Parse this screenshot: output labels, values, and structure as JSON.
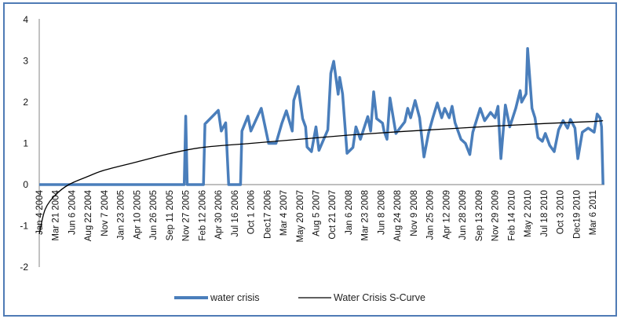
{
  "chart_data": {
    "type": "line",
    "title": "",
    "xlabel": "",
    "ylabel": "",
    "ylim": [
      -2,
      4
    ],
    "yticks": [
      "4",
      "3",
      "2",
      "1",
      "0",
      "-1",
      "-2"
    ],
    "grid": false,
    "legend_position": "bottom",
    "x_tick_labels": [
      "Jan 4 2004",
      "Mar 21 2004",
      "Jun 6 2004",
      "Aug 22 2004",
      "Nov 7 2004",
      "Jan 23 2005",
      "Apr 10 2005",
      "Jun 26 2005",
      "Sep 11 2005",
      "Nov 27 2005",
      "Feb 12 2006",
      "Apr 30 2006",
      "Jul 16 2006",
      "Oct 1 2006",
      "Dec17 2006",
      "Mar 4 2007",
      "May 20 2007",
      "Aug 5 2007",
      "Oct 21 2007",
      "Jan 6 2008",
      "Mar 23 2008",
      "Jun 8 2008",
      "Aug 24 2008",
      "Nov 9 2008",
      "Jan 25 2009",
      "Apr 12 2009",
      "Jun 28 2009",
      "Sep 13 2009",
      "Nov 29 2009",
      "Feb 14 2010",
      "May 2 2010",
      "Jul 18 2010",
      "Oct 3 2010",
      "Dec19 2010",
      "Mar 6 2011"
    ],
    "series": [
      {
        "name": "water crisis",
        "color": "#4a7ebb",
        "points": [
          [
            "2004-01-04",
            0
          ],
          [
            "2005-11-20",
            0
          ],
          [
            "2005-11-27",
            1.66
          ],
          [
            "2005-12-04",
            0
          ],
          [
            "2006-02-19",
            0
          ],
          [
            "2006-02-26",
            1.47
          ],
          [
            "2006-04-30",
            1.8
          ],
          [
            "2006-05-14",
            1.3
          ],
          [
            "2006-06-04",
            1.5
          ],
          [
            "2006-06-18",
            0
          ],
          [
            "2006-08-13",
            0
          ],
          [
            "2006-08-20",
            1.3
          ],
          [
            "2006-09-17",
            1.66
          ],
          [
            "2006-10-01",
            1.3
          ],
          [
            "2006-11-19",
            1.85
          ],
          [
            "2006-12-24",
            1.0
          ],
          [
            "2007-01-28",
            1.0
          ],
          [
            "2007-02-25",
            1.49
          ],
          [
            "2007-03-18",
            1.79
          ],
          [
            "2007-04-15",
            1.3
          ],
          [
            "2007-04-22",
            2.04
          ],
          [
            "2007-05-13",
            2.38
          ],
          [
            "2007-06-03",
            1.6
          ],
          [
            "2007-06-17",
            1.4
          ],
          [
            "2007-06-24",
            0.91
          ],
          [
            "2007-07-15",
            0.8
          ],
          [
            "2007-08-05",
            1.4
          ],
          [
            "2007-08-19",
            0.83
          ],
          [
            "2007-09-30",
            1.33
          ],
          [
            "2007-10-14",
            2.7
          ],
          [
            "2007-10-28",
            2.99
          ],
          [
            "2007-11-18",
            2.19
          ],
          [
            "2007-11-25",
            2.6
          ],
          [
            "2007-12-09",
            2.2
          ],
          [
            "2007-12-30",
            0.76
          ],
          [
            "2008-01-27",
            0.9
          ],
          [
            "2008-02-10",
            1.4
          ],
          [
            "2008-03-02",
            1.1
          ],
          [
            "2008-04-06",
            1.65
          ],
          [
            "2008-04-20",
            1.3
          ],
          [
            "2008-05-04",
            2.25
          ],
          [
            "2008-05-18",
            1.6
          ],
          [
            "2008-06-15",
            1.49
          ],
          [
            "2008-06-22",
            1.3
          ],
          [
            "2008-07-06",
            1.1
          ],
          [
            "2008-07-20",
            2.1
          ],
          [
            "2008-08-17",
            1.24
          ],
          [
            "2008-09-28",
            1.52
          ],
          [
            "2008-10-12",
            1.85
          ],
          [
            "2008-10-26",
            1.62
          ],
          [
            "2008-11-16",
            2.04
          ],
          [
            "2008-12-07",
            1.62
          ],
          [
            "2008-12-28",
            0.67
          ],
          [
            "2009-01-18",
            1.24
          ],
          [
            "2009-02-08",
            1.62
          ],
          [
            "2009-03-01",
            1.98
          ],
          [
            "2009-03-22",
            1.62
          ],
          [
            "2009-04-05",
            1.85
          ],
          [
            "2009-04-26",
            1.62
          ],
          [
            "2009-05-10",
            1.9
          ],
          [
            "2009-05-24",
            1.5
          ],
          [
            "2009-06-21",
            1.1
          ],
          [
            "2009-07-12",
            1.0
          ],
          [
            "2009-08-02",
            0.73
          ],
          [
            "2009-08-16",
            1.27
          ],
          [
            "2009-09-20",
            1.85
          ],
          [
            "2009-10-11",
            1.55
          ],
          [
            "2009-11-08",
            1.75
          ],
          [
            "2009-11-29",
            1.62
          ],
          [
            "2009-12-13",
            1.9
          ],
          [
            "2009-12-27",
            0.63
          ],
          [
            "2010-01-17",
            1.93
          ],
          [
            "2010-02-07",
            1.4
          ],
          [
            "2010-03-07",
            1.85
          ],
          [
            "2010-03-28",
            2.28
          ],
          [
            "2010-04-04",
            2.0
          ],
          [
            "2010-04-25",
            2.2
          ],
          [
            "2010-05-02",
            3.3
          ],
          [
            "2010-05-23",
            1.85
          ],
          [
            "2010-06-06",
            1.62
          ],
          [
            "2010-06-20",
            1.14
          ],
          [
            "2010-07-11",
            1.05
          ],
          [
            "2010-07-25",
            1.24
          ],
          [
            "2010-08-15",
            0.95
          ],
          [
            "2010-09-05",
            0.8
          ],
          [
            "2010-09-26",
            1.33
          ],
          [
            "2010-10-17",
            1.55
          ],
          [
            "2010-11-07",
            1.37
          ],
          [
            "2010-11-21",
            1.58
          ],
          [
            "2010-12-12",
            1.37
          ],
          [
            "2010-12-26",
            0.63
          ],
          [
            "2011-01-16",
            1.27
          ],
          [
            "2011-02-13",
            1.37
          ],
          [
            "2011-03-13",
            1.27
          ],
          [
            "2011-03-27",
            1.71
          ],
          [
            "2011-04-10",
            1.62
          ],
          [
            "2011-04-17",
            1.4
          ],
          [
            "2011-04-24",
            0
          ]
        ]
      },
      {
        "name": "Water Crisis S-Curve",
        "color": "#000000",
        "points": [
          [
            "2004-01-04",
            -1.2
          ],
          [
            "2004-02-01",
            -0.6
          ],
          [
            "2004-03-21",
            -0.25
          ],
          [
            "2004-05-23",
            0
          ],
          [
            "2004-08-22",
            0.2
          ],
          [
            "2004-11-07",
            0.35
          ],
          [
            "2005-04-10",
            0.55
          ],
          [
            "2005-09-11",
            0.75
          ],
          [
            "2006-02-12",
            0.9
          ],
          [
            "2006-10-01",
            1.0
          ],
          [
            "2007-05-20",
            1.1
          ],
          [
            "2008-01-06",
            1.2
          ],
          [
            "2008-08-24",
            1.28
          ],
          [
            "2009-04-12",
            1.35
          ],
          [
            "2009-11-29",
            1.42
          ],
          [
            "2010-07-18",
            1.48
          ],
          [
            "2011-03-06",
            1.53
          ],
          [
            "2011-04-24",
            1.55
          ]
        ]
      }
    ]
  }
}
